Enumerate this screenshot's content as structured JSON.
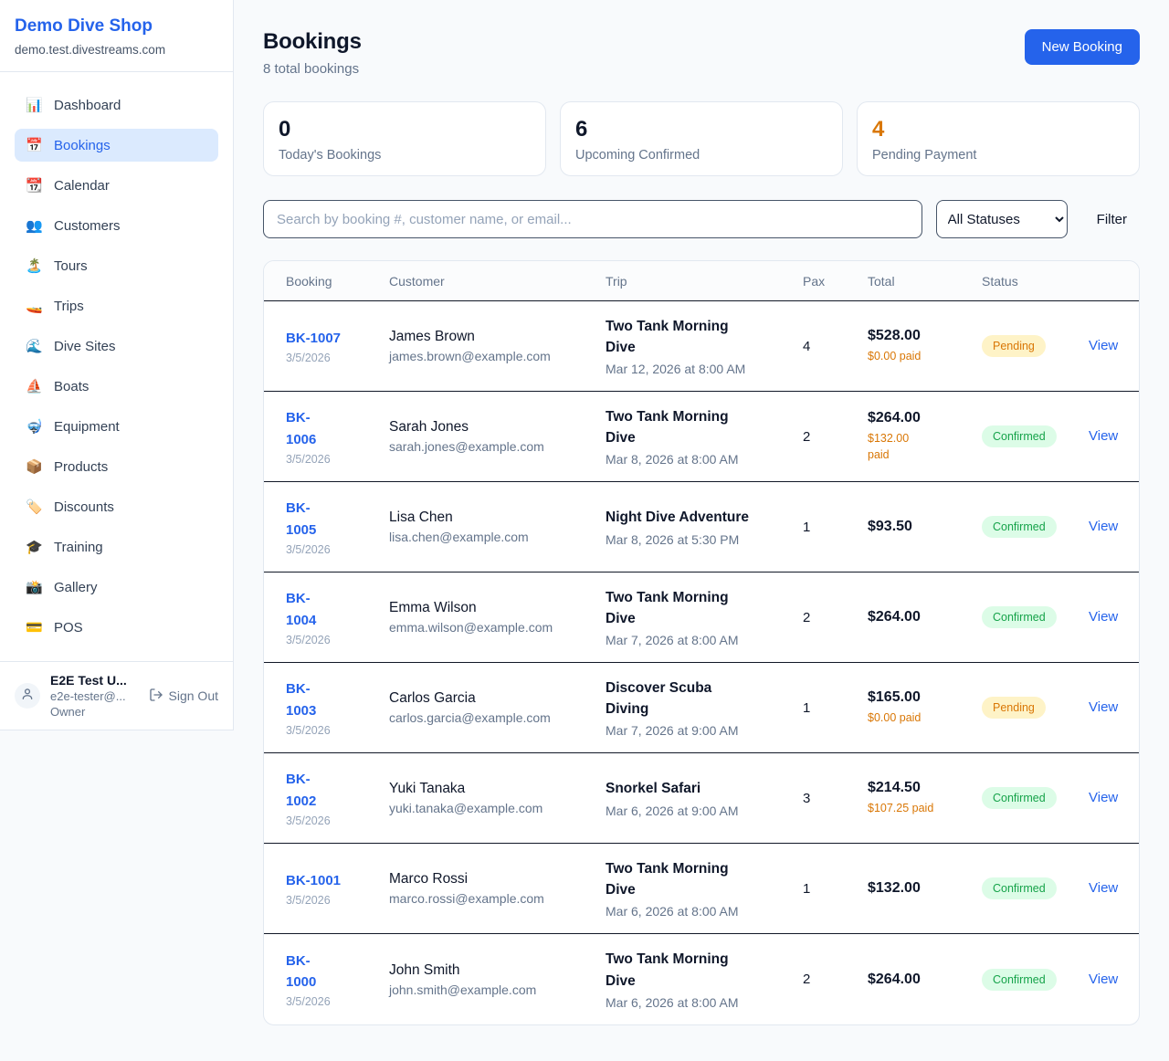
{
  "sidebar": {
    "shop_name": "Demo Dive Shop",
    "domain": "demo.test.divestreams.com",
    "items": [
      {
        "icon": "📊",
        "icon_name": "bar-chart-icon",
        "label": "Dashboard",
        "active": false
      },
      {
        "icon": "📅",
        "icon_name": "calendar-icon",
        "label": "Bookings",
        "active": true
      },
      {
        "icon": "📆",
        "icon_name": "tear-off-calendar-icon",
        "label": "Calendar",
        "active": false
      },
      {
        "icon": "👥",
        "icon_name": "people-icon",
        "label": "Customers",
        "active": false
      },
      {
        "icon": "🏝️",
        "icon_name": "island-icon",
        "label": "Tours",
        "active": false
      },
      {
        "icon": "🚤",
        "icon_name": "speedboat-icon",
        "label": "Trips",
        "active": false
      },
      {
        "icon": "🌊",
        "icon_name": "wave-icon",
        "label": "Dive Sites",
        "active": false
      },
      {
        "icon": "⛵",
        "icon_name": "sailboat-icon",
        "label": "Boats",
        "active": false
      },
      {
        "icon": "🤿",
        "icon_name": "diving-mask-icon",
        "label": "Equipment",
        "active": false
      },
      {
        "icon": "📦",
        "icon_name": "package-icon",
        "label": "Products",
        "active": false
      },
      {
        "icon": "🏷️",
        "icon_name": "price-tag-icon",
        "label": "Discounts",
        "active": false
      },
      {
        "icon": "🎓",
        "icon_name": "graduation-cap-icon",
        "label": "Training",
        "active": false
      },
      {
        "icon": "📸",
        "icon_name": "camera-icon",
        "label": "Gallery",
        "active": false
      },
      {
        "icon": "💳",
        "icon_name": "credit-card-icon",
        "label": "POS",
        "active": false
      }
    ],
    "user": {
      "name": "E2E Test U...",
      "email": "e2e-tester@...",
      "role": "Owner",
      "sign_out_label": "Sign Out"
    }
  },
  "header": {
    "title": "Bookings",
    "subtitle": "8 total bookings",
    "new_booking_label": "New Booking"
  },
  "stats": [
    {
      "value": "0",
      "label": "Today's Bookings"
    },
    {
      "value": "6",
      "label": "Upcoming Confirmed"
    },
    {
      "value": "4",
      "label": "Pending Payment"
    }
  ],
  "controls": {
    "search_placeholder": "Search by booking #, customer name, or email...",
    "status_filter_value": "All Statuses",
    "filter_label": "Filter"
  },
  "table": {
    "columns": [
      "Booking",
      "Customer",
      "Trip",
      "Pax",
      "Total",
      "Status"
    ],
    "rows": [
      {
        "id": "BK-1007",
        "id_wrap": false,
        "date": "3/5/2026",
        "customer": "James Brown",
        "email": "james.brown@example.com",
        "trip": "Two Tank Morning Dive",
        "trip_datetime": "Mar 12, 2026 at 8:00 AM",
        "pax": "4",
        "total": "$528.00",
        "paid": "$0.00 paid",
        "paid_wrap": false,
        "status": "Pending",
        "action": "View"
      },
      {
        "id": "BK-1006",
        "id_wrap": true,
        "date": "3/5/2026",
        "customer": "Sarah Jones",
        "email": "sarah.jones@example.com",
        "trip": "Two Tank Morning Dive",
        "trip_datetime": "Mar 8, 2026 at 8:00 AM",
        "pax": "2",
        "total": "$264.00",
        "paid": "$132.00 paid",
        "paid_wrap": true,
        "status": "Confirmed",
        "action": "View"
      },
      {
        "id": "BK-1005",
        "id_wrap": true,
        "date": "3/5/2026",
        "customer": "Lisa Chen",
        "email": "lisa.chen@example.com",
        "trip": "Night Dive Adventure",
        "trip_datetime": "Mar 8, 2026 at 5:30 PM",
        "pax": "1",
        "total": "$93.50",
        "paid": "",
        "paid_wrap": false,
        "status": "Confirmed",
        "action": "View"
      },
      {
        "id": "BK-1004",
        "id_wrap": true,
        "date": "3/5/2026",
        "customer": "Emma Wilson",
        "email": "emma.wilson@example.com",
        "trip": "Two Tank Morning Dive",
        "trip_datetime": "Mar 7, 2026 at 8:00 AM",
        "pax": "2",
        "total": "$264.00",
        "paid": "",
        "paid_wrap": false,
        "status": "Confirmed",
        "action": "View"
      },
      {
        "id": "BK-1003",
        "id_wrap": true,
        "date": "3/5/2026",
        "customer": "Carlos Garcia",
        "email": "carlos.garcia@example.com",
        "trip": "Discover Scuba Diving",
        "trip_datetime": "Mar 7, 2026 at 9:00 AM",
        "pax": "1",
        "total": "$165.00",
        "paid": "$0.00 paid",
        "paid_wrap": false,
        "status": "Pending",
        "action": "View"
      },
      {
        "id": "BK-1002",
        "id_wrap": true,
        "date": "3/5/2026",
        "customer": "Yuki Tanaka",
        "email": "yuki.tanaka@example.com",
        "trip": "Snorkel Safari",
        "trip_datetime": "Mar 6, 2026 at 9:00 AM",
        "pax": "3",
        "total": "$214.50",
        "paid": "$107.25 paid",
        "paid_wrap": false,
        "status": "Confirmed",
        "action": "View"
      },
      {
        "id": "BK-1001",
        "id_wrap": false,
        "date": "3/5/2026",
        "customer": "Marco Rossi",
        "email": "marco.rossi@example.com",
        "trip": "Two Tank Morning Dive",
        "trip_datetime": "Mar 6, 2026 at 8:00 AM",
        "pax": "1",
        "total": "$132.00",
        "paid": "",
        "paid_wrap": false,
        "status": "Confirmed",
        "action": "View"
      },
      {
        "id": "BK-1000",
        "id_wrap": true,
        "date": "3/5/2026",
        "customer": "John Smith",
        "email": "john.smith@example.com",
        "trip": "Two Tank Morning Dive",
        "trip_datetime": "Mar 6, 2026 at 8:00 AM",
        "pax": "2",
        "total": "$264.00",
        "paid": "",
        "paid_wrap": false,
        "status": "Confirmed",
        "action": "View"
      }
    ]
  },
  "colors": {
    "accent_blue": "#2563eb",
    "pending_text": "#d97706",
    "pending_bg": "#fef3c7",
    "confirmed_text": "#16a34a",
    "confirmed_bg": "#dcfce7",
    "page_bg": "#f8fafc",
    "dark_text": "#0f172a",
    "muted_text": "#64748b",
    "border_light": "#e2e8f0",
    "row_divider": "#111827"
  }
}
